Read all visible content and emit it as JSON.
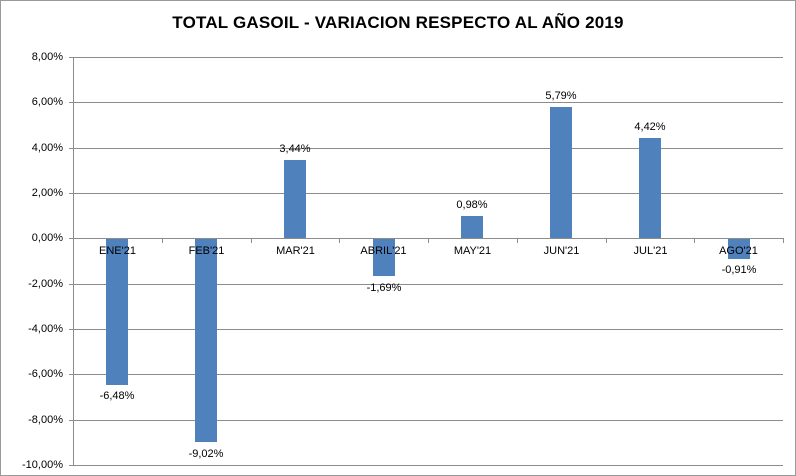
{
  "chart_data": {
    "type": "bar",
    "title": "TOTAL GASOIL - VARIACION RESPECTO AL AÑO 2019",
    "categories": [
      "ENE'21",
      "FEB'21",
      "MAR'21",
      "ABRIL'21",
      "MAY'21",
      "JUN'21",
      "JUL'21",
      "AGO'21"
    ],
    "values": [
      -6.48,
      -9.02,
      3.44,
      -1.69,
      0.98,
      5.79,
      4.42,
      -0.91
    ],
    "value_labels": [
      "-6,48%",
      "-9,02%",
      "3,44%",
      "-1,69%",
      "0,98%",
      "5,79%",
      "4,42%",
      "-0,91%"
    ],
    "xlabel": "",
    "ylabel": "",
    "ylim": [
      -10,
      8
    ],
    "ytick_step": 2,
    "ytick_labels": [
      "8,00%",
      "6,00%",
      "4,00%",
      "2,00%",
      "0,00%",
      "-2,00%",
      "-4,00%",
      "-6,00%",
      "-8,00%",
      "-10,00%"
    ],
    "grid": true,
    "legend": "none",
    "colors": {
      "bar": "#4F81BD",
      "gridline": "#8C8C8C",
      "axis": "#8C8C8C",
      "text": "#000000",
      "frame_border": "#999999",
      "background": "#FFFFFF"
    }
  }
}
